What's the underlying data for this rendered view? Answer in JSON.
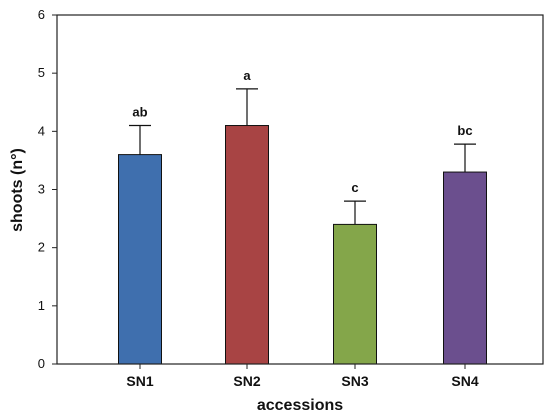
{
  "chart_data": {
    "type": "bar",
    "title": "",
    "xlabel": "accessions",
    "ylabel": "shoots (n°)",
    "categories": [
      "SN1",
      "SN2",
      "SN3",
      "SN4"
    ],
    "values": [
      3.6,
      4.1,
      2.4,
      3.3
    ],
    "error_bars": [
      0.5,
      0.63,
      0.4,
      0.48
    ],
    "significance_letters": [
      "ab",
      "a",
      "c",
      "bc"
    ],
    "bar_colors": [
      "#3f6fae",
      "#a84444",
      "#84a64a",
      "#6b4f8e"
    ],
    "ylim": [
      0,
      6
    ],
    "yticks": [
      "0",
      "1",
      "2",
      "3",
      "4",
      "5",
      "6"
    ],
    "grid": false,
    "legend": "none"
  }
}
